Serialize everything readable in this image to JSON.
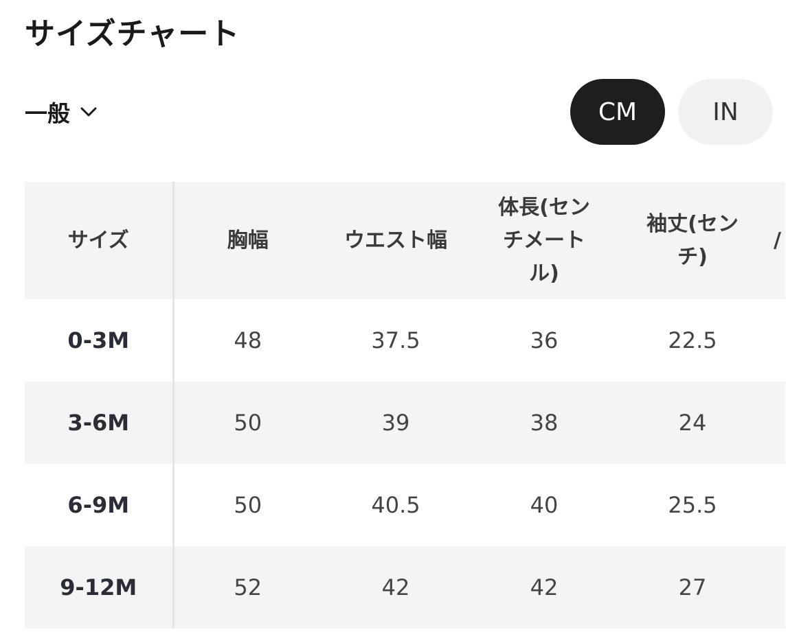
{
  "header": {
    "title": "サイズチャート"
  },
  "filter": {
    "label": "一般",
    "icon": "chevron-down-icon"
  },
  "units": {
    "cm_label": "CM",
    "in_label": "IN",
    "selected": "CM"
  },
  "table": {
    "columns": [
      "サイズ",
      "胸幅",
      "ウエスト幅",
      "体長(センチメートル)",
      "袖丈(センチ)",
      "/"
    ],
    "rows": [
      {
        "size": "0-3M",
        "values": [
          "48",
          "37.5",
          "36",
          "22.5",
          ""
        ]
      },
      {
        "size": "3-6M",
        "values": [
          "50",
          "39",
          "38",
          "24",
          ""
        ]
      },
      {
        "size": "6-9M",
        "values": [
          "50",
          "40.5",
          "40",
          "25.5",
          ""
        ]
      },
      {
        "size": "9-12M",
        "values": [
          "52",
          "42",
          "42",
          "27",
          ""
        ]
      }
    ]
  },
  "colors": {
    "selected_bg": "#1e1e1e",
    "unselected_bg": "#f1f1f1",
    "row_alt_bg": "#f4f4f4",
    "text_dark": "#1a1a1a"
  }
}
